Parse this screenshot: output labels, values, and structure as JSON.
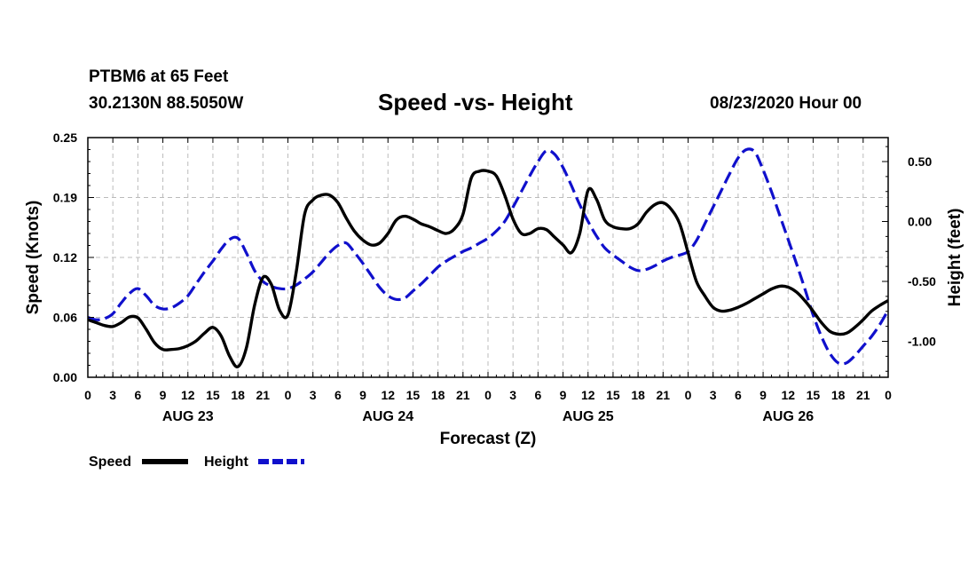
{
  "header": {
    "station": "PTBM6 at 65 Feet",
    "coords": "30.2130N 88.5050W",
    "title": "Speed -vs- Height",
    "timestamp": "08/23/2020 Hour 00"
  },
  "chart_data": {
    "type": "line",
    "title": "Speed -vs- Height",
    "xlabel": "Forecast (Z)",
    "ylabel": "Speed (Knots)",
    "y2label": "Height (feet)",
    "x_hours_range": [
      0,
      96
    ],
    "x_tick_labels": [
      "0",
      "3",
      "6",
      "9",
      "12",
      "15",
      "18",
      "21",
      "0",
      "3",
      "6",
      "9",
      "12",
      "15",
      "18",
      "21",
      "0",
      "3",
      "6",
      "9",
      "12",
      "15",
      "18",
      "21",
      "0",
      "3",
      "6",
      "9",
      "12",
      "15",
      "18",
      "21",
      "0"
    ],
    "x_day_labels": [
      {
        "label": "AUG 23",
        "hour": 12
      },
      {
        "label": "AUG 24",
        "hour": 36
      },
      {
        "label": "AUG 25",
        "hour": 60
      },
      {
        "label": "AUG 26",
        "hour": 84
      }
    ],
    "ylim": [
      0,
      0.25
    ],
    "y_ticks": [
      "0.00",
      "0.06",
      "0.12",
      "0.19",
      "0.25"
    ],
    "y_tick_values": [
      0,
      0.0625,
      0.125,
      0.1875,
      0.25
    ],
    "y2lim": [
      -1.3,
      0.7
    ],
    "y2_ticks": [
      "0.50",
      "0.00",
      "-0.50",
      "-1.00"
    ],
    "y2_tick_values": [
      0.5,
      0,
      -0.5,
      -1.0
    ],
    "grid": true,
    "colors": {
      "speed": "#000000",
      "height": "#1010cc",
      "grid": "#bbbbbb"
    },
    "legend": [
      {
        "name": "Speed",
        "color": "#000000",
        "dash": false
      },
      {
        "name": "Height",
        "color": "#1010cc",
        "dash": true
      }
    ],
    "series": [
      {
        "name": "Speed",
        "axis": "left",
        "x": [
          0,
          1,
          2,
          3,
          4,
          5,
          6,
          7,
          8,
          9,
          10,
          11,
          12,
          13,
          14,
          15,
          16,
          17,
          18,
          19,
          20,
          21,
          22,
          23,
          24,
          25,
          26,
          27,
          28,
          29,
          30,
          31,
          32,
          33,
          34,
          35,
          36,
          37,
          38,
          39,
          40,
          41,
          42,
          43,
          44,
          45,
          46,
          47,
          48,
          49,
          50,
          51,
          52,
          53,
          54,
          55,
          56,
          57,
          58,
          59,
          60,
          61,
          62,
          63,
          64,
          65,
          66,
          67,
          68,
          69,
          70,
          71,
          72,
          73,
          74,
          75,
          76,
          77,
          78,
          79,
          80,
          81,
          82,
          83,
          84,
          85,
          86,
          87,
          88,
          89,
          90,
          91,
          92,
          93,
          94,
          95,
          96
        ],
        "values": [
          0.06,
          0.057,
          0.054,
          0.053,
          0.057,
          0.063,
          0.062,
          0.05,
          0.036,
          0.029,
          0.029,
          0.03,
          0.033,
          0.038,
          0.046,
          0.052,
          0.043,
          0.022,
          0.011,
          0.03,
          0.075,
          0.104,
          0.097,
          0.07,
          0.065,
          0.11,
          0.17,
          0.185,
          0.19,
          0.19,
          0.182,
          0.166,
          0.152,
          0.143,
          0.138,
          0.14,
          0.15,
          0.164,
          0.168,
          0.165,
          0.16,
          0.157,
          0.153,
          0.15,
          0.155,
          0.17,
          0.208,
          0.215,
          0.215,
          0.21,
          0.19,
          0.165,
          0.15,
          0.15,
          0.155,
          0.154,
          0.146,
          0.138,
          0.13,
          0.15,
          0.195,
          0.186,
          0.164,
          0.157,
          0.155,
          0.155,
          0.16,
          0.172,
          0.18,
          0.182,
          0.175,
          0.16,
          0.13,
          0.1,
          0.085,
          0.073,
          0.069,
          0.07,
          0.073,
          0.077,
          0.082,
          0.087,
          0.092,
          0.095,
          0.094,
          0.089,
          0.08,
          0.069,
          0.057,
          0.048,
          0.045,
          0.046,
          0.052,
          0.06,
          0.069,
          0.075,
          0.08
        ]
      },
      {
        "name": "Height",
        "axis": "right",
        "x": [
          0,
          1,
          2,
          3,
          4,
          5,
          6,
          7,
          8,
          9,
          10,
          11,
          12,
          13,
          14,
          15,
          16,
          17,
          18,
          19,
          20,
          21,
          22,
          23,
          24,
          25,
          26,
          27,
          28,
          29,
          30,
          31,
          32,
          33,
          34,
          35,
          36,
          37,
          38,
          39,
          40,
          41,
          42,
          43,
          44,
          45,
          46,
          47,
          48,
          49,
          50,
          51,
          52,
          53,
          54,
          55,
          56,
          57,
          58,
          59,
          60,
          61,
          62,
          63,
          64,
          65,
          66,
          67,
          68,
          69,
          70,
          71,
          72,
          73,
          74,
          75,
          76,
          77,
          78,
          79,
          80,
          81,
          82,
          83,
          84,
          85,
          86,
          87,
          88,
          89,
          90,
          91,
          92,
          93,
          94,
          95,
          96
        ],
        "values": [
          -0.8,
          -0.82,
          -0.81,
          -0.77,
          -0.68,
          -0.6,
          -0.56,
          -0.62,
          -0.7,
          -0.73,
          -0.72,
          -0.68,
          -0.62,
          -0.52,
          -0.42,
          -0.33,
          -0.23,
          -0.15,
          -0.14,
          -0.26,
          -0.41,
          -0.5,
          -0.54,
          -0.56,
          -0.56,
          -0.53,
          -0.48,
          -0.42,
          -0.34,
          -0.26,
          -0.2,
          -0.18,
          -0.26,
          -0.35,
          -0.45,
          -0.55,
          -0.62,
          -0.65,
          -0.64,
          -0.58,
          -0.52,
          -0.45,
          -0.38,
          -0.33,
          -0.29,
          -0.25,
          -0.22,
          -0.18,
          -0.14,
          -0.08,
          0.0,
          0.12,
          0.25,
          0.38,
          0.5,
          0.59,
          0.56,
          0.45,
          0.3,
          0.14,
          0.0,
          -0.12,
          -0.22,
          -0.28,
          -0.33,
          -0.38,
          -0.41,
          -0.4,
          -0.37,
          -0.33,
          -0.3,
          -0.28,
          -0.25,
          -0.16,
          -0.02,
          0.12,
          0.26,
          0.4,
          0.53,
          0.6,
          0.58,
          0.43,
          0.25,
          0.05,
          -0.15,
          -0.35,
          -0.56,
          -0.78,
          -0.96,
          -1.1,
          -1.18,
          -1.18,
          -1.12,
          -1.04,
          -0.96,
          -0.86,
          -0.74
        ]
      }
    ]
  }
}
